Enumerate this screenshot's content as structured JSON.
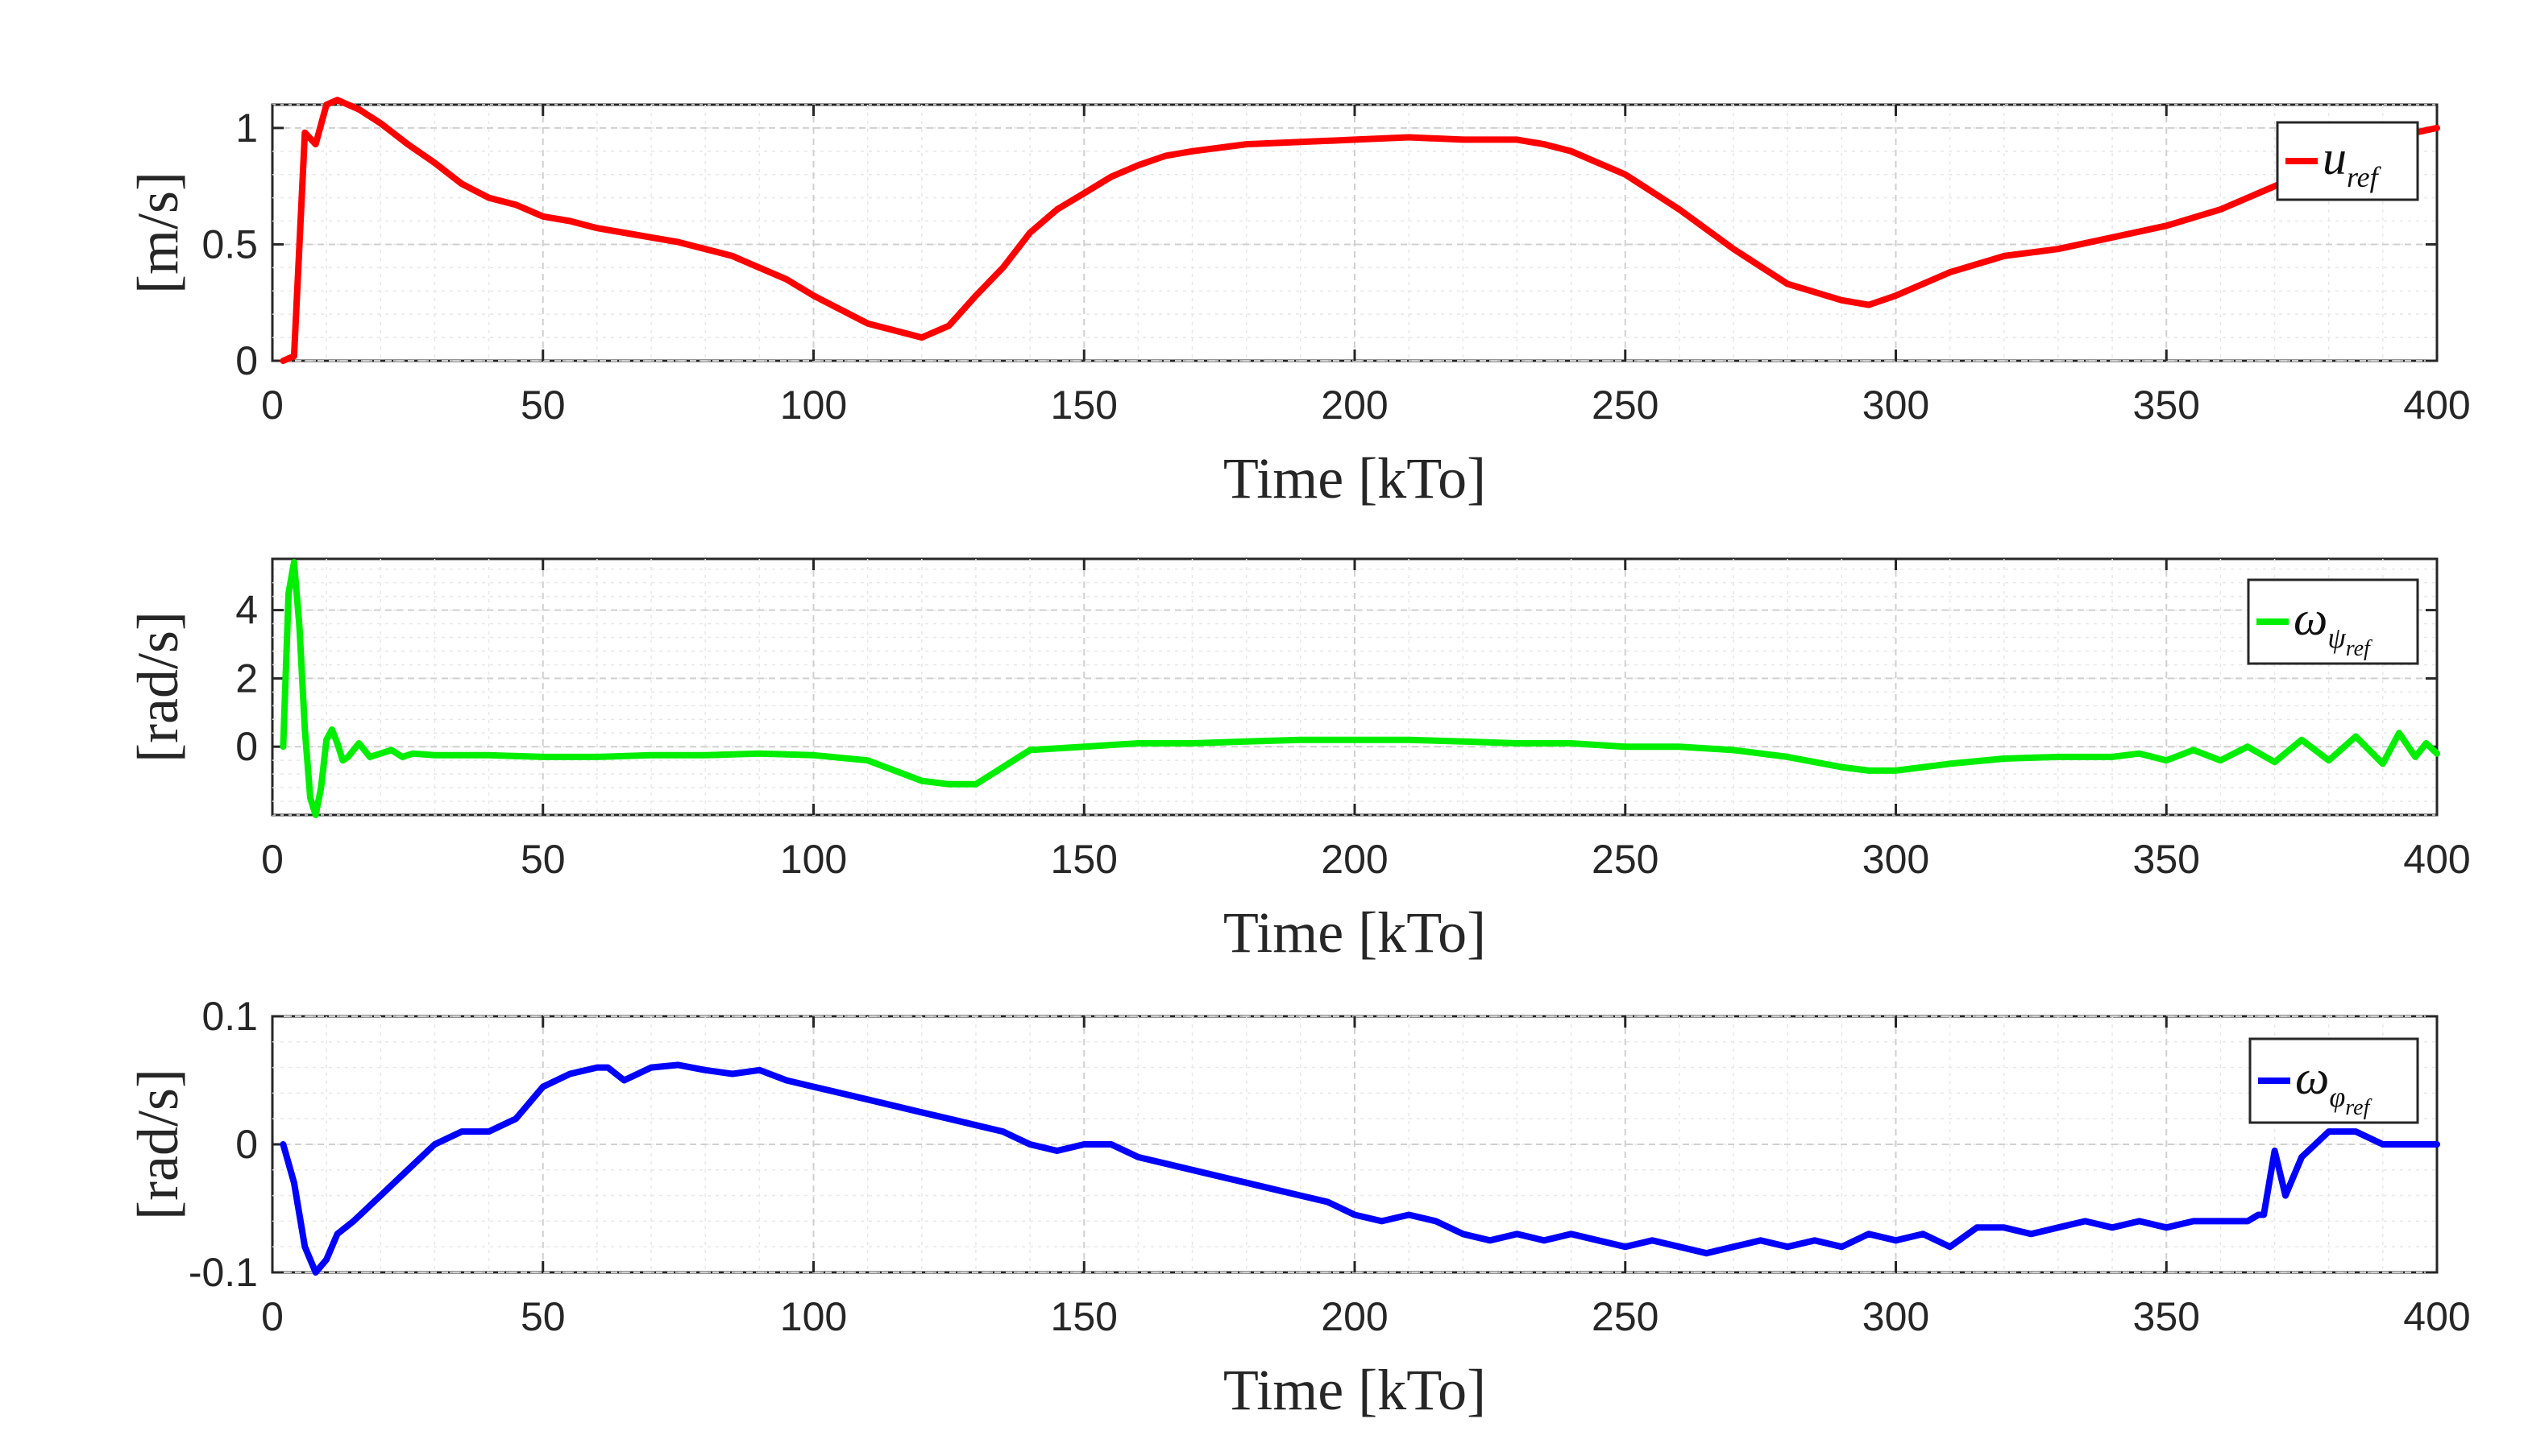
{
  "chart_data": [
    {
      "type": "line",
      "xlabel": "Time [kTo]",
      "ylabel": "[m/s]",
      "xlim": [
        0,
        400
      ],
      "ylim": [
        0,
        1.1
      ],
      "xticks": [
        "0",
        "50",
        "100",
        "150",
        "200",
        "250",
        "300",
        "350",
        "400"
      ],
      "yticks": [
        {
          "value": 0,
          "label": "0"
        },
        {
          "value": 0.5,
          "label": "0.5"
        },
        {
          "value": 1,
          "label": "1"
        }
      ],
      "legend": {
        "symbol": "u",
        "subscript": "ref",
        "position": "top-right"
      },
      "color": "#ff0000",
      "series": [
        {
          "name": "u_ref",
          "x": [
            2,
            4,
            5,
            6,
            8,
            10,
            12,
            14,
            16,
            20,
            25,
            30,
            35,
            40,
            45,
            50,
            55,
            60,
            65,
            70,
            75,
            80,
            85,
            90,
            95,
            100,
            105,
            110,
            115,
            120,
            125,
            130,
            135,
            140,
            145,
            150,
            155,
            160,
            165,
            170,
            180,
            190,
            200,
            210,
            220,
            230,
            235,
            240,
            250,
            260,
            270,
            280,
            290,
            295,
            300,
            310,
            320,
            330,
            340,
            350,
            360,
            370,
            380,
            390,
            400
          ],
          "y": [
            0,
            0.02,
            0.5,
            0.98,
            0.93,
            1.1,
            1.12,
            1.1,
            1.08,
            1.02,
            0.93,
            0.85,
            0.76,
            0.7,
            0.67,
            0.62,
            0.6,
            0.57,
            0.55,
            0.53,
            0.51,
            0.48,
            0.45,
            0.4,
            0.35,
            0.28,
            0.22,
            0.16,
            0.13,
            0.1,
            0.15,
            0.28,
            0.4,
            0.55,
            0.65,
            0.72,
            0.79,
            0.84,
            0.88,
            0.9,
            0.93,
            0.94,
            0.95,
            0.96,
            0.95,
            0.95,
            0.93,
            0.9,
            0.8,
            0.65,
            0.48,
            0.33,
            0.26,
            0.24,
            0.28,
            0.38,
            0.45,
            0.48,
            0.53,
            0.58,
            0.65,
            0.75,
            0.85,
            0.95,
            1.0
          ]
        }
      ]
    },
    {
      "type": "line",
      "xlabel": "Time [kTo]",
      "ylabel": "[rad/s]",
      "xlim": [
        0,
        400
      ],
      "ylim": [
        -2,
        5.5
      ],
      "xticks": [
        "0",
        "50",
        "100",
        "150",
        "200",
        "250",
        "300",
        "350",
        "400"
      ],
      "yticks": [
        {
          "value": 0,
          "label": "0"
        },
        {
          "value": 2,
          "label": "2"
        },
        {
          "value": 4,
          "label": "4"
        }
      ],
      "legend": {
        "symbol": "ω",
        "subscript": "ψ",
        "subsubscript": "ref",
        "position": "top-right"
      },
      "color": "#00ee00",
      "series": [
        {
          "name": "omega_psi_ref",
          "x": [
            2,
            3,
            4,
            5,
            6,
            7,
            8,
            9,
            10,
            11,
            12,
            13,
            14,
            15,
            16,
            18,
            20,
            22,
            24,
            26,
            30,
            40,
            50,
            60,
            70,
            80,
            90,
            100,
            110,
            115,
            120,
            125,
            130,
            135,
            140,
            150,
            160,
            170,
            180,
            190,
            200,
            210,
            220,
            230,
            240,
            250,
            260,
            270,
            280,
            290,
            295,
            300,
            310,
            320,
            330,
            340,
            345,
            350,
            355,
            360,
            365,
            370,
            375,
            380,
            385,
            390,
            393,
            396,
            398,
            400
          ],
          "y": [
            0,
            4.5,
            5.4,
            3.5,
            0.5,
            -1.5,
            -2.0,
            -1.2,
            0.2,
            0.5,
            0.1,
            -0.4,
            -0.3,
            -0.1,
            0.1,
            -0.3,
            -0.2,
            -0.1,
            -0.3,
            -0.2,
            -0.25,
            -0.25,
            -0.3,
            -0.3,
            -0.25,
            -0.25,
            -0.2,
            -0.25,
            -0.4,
            -0.7,
            -1.0,
            -1.1,
            -1.1,
            -0.6,
            -0.1,
            0.0,
            0.1,
            0.1,
            0.15,
            0.2,
            0.2,
            0.2,
            0.15,
            0.1,
            0.1,
            0.0,
            0.0,
            -0.1,
            -0.3,
            -0.6,
            -0.7,
            -0.7,
            -0.5,
            -0.35,
            -0.3,
            -0.3,
            -0.2,
            -0.4,
            -0.1,
            -0.4,
            0.0,
            -0.45,
            0.2,
            -0.4,
            0.3,
            -0.5,
            0.4,
            -0.3,
            0.1,
            -0.2
          ]
        }
      ]
    },
    {
      "type": "line",
      "xlabel": "Time [kTo]",
      "ylabel": "[rad/s]",
      "xlim": [
        0,
        400
      ],
      "ylim": [
        -0.1,
        0.1
      ],
      "xticks": [
        "0",
        "50",
        "100",
        "150",
        "200",
        "250",
        "300",
        "350",
        "400"
      ],
      "yticks": [
        {
          "value": -0.1,
          "label": "-0.1"
        },
        {
          "value": 0,
          "label": "0"
        },
        {
          "value": 0.1,
          "label": "0.1"
        }
      ],
      "legend": {
        "symbol": "ω",
        "subscript": "φ",
        "subsubscript": "ref",
        "position": "top-right"
      },
      "color": "#0000ff",
      "series": [
        {
          "name": "omega_phi_ref",
          "x": [
            2,
            4,
            6,
            8,
            10,
            12,
            15,
            20,
            25,
            30,
            35,
            40,
            45,
            50,
            55,
            60,
            62,
            65,
            70,
            75,
            80,
            85,
            90,
            95,
            100,
            105,
            110,
            115,
            120,
            125,
            130,
            135,
            140,
            145,
            150,
            155,
            160,
            165,
            170,
            175,
            180,
            185,
            190,
            195,
            200,
            205,
            210,
            215,
            220,
            225,
            230,
            235,
            240,
            245,
            250,
            255,
            260,
            265,
            270,
            275,
            280,
            285,
            290,
            295,
            300,
            305,
            310,
            315,
            320,
            325,
            330,
            335,
            340,
            345,
            350,
            355,
            360,
            365,
            367,
            368,
            370,
            372,
            375,
            380,
            385,
            390,
            395,
            400
          ],
          "y": [
            0,
            -0.03,
            -0.08,
            -0.1,
            -0.09,
            -0.07,
            -0.06,
            -0.04,
            -0.02,
            0.0,
            0.01,
            0.01,
            0.02,
            0.045,
            0.055,
            0.06,
            0.06,
            0.05,
            0.06,
            0.062,
            0.058,
            0.055,
            0.058,
            0.05,
            0.045,
            0.04,
            0.035,
            0.03,
            0.025,
            0.02,
            0.015,
            0.01,
            0.0,
            -0.005,
            0.0,
            0.0,
            -0.01,
            -0.015,
            -0.02,
            -0.025,
            -0.03,
            -0.035,
            -0.04,
            -0.045,
            -0.055,
            -0.06,
            -0.055,
            -0.06,
            -0.07,
            -0.075,
            -0.07,
            -0.075,
            -0.07,
            -0.075,
            -0.08,
            -0.075,
            -0.08,
            -0.085,
            -0.08,
            -0.075,
            -0.08,
            -0.075,
            -0.08,
            -0.07,
            -0.075,
            -0.07,
            -0.08,
            -0.065,
            -0.065,
            -0.07,
            -0.065,
            -0.06,
            -0.065,
            -0.06,
            -0.065,
            -0.06,
            -0.06,
            -0.06,
            -0.055,
            -0.055,
            -0.005,
            -0.04,
            -0.01,
            0.01,
            0.01,
            0.0,
            0.0,
            0.0
          ]
        }
      ]
    }
  ]
}
